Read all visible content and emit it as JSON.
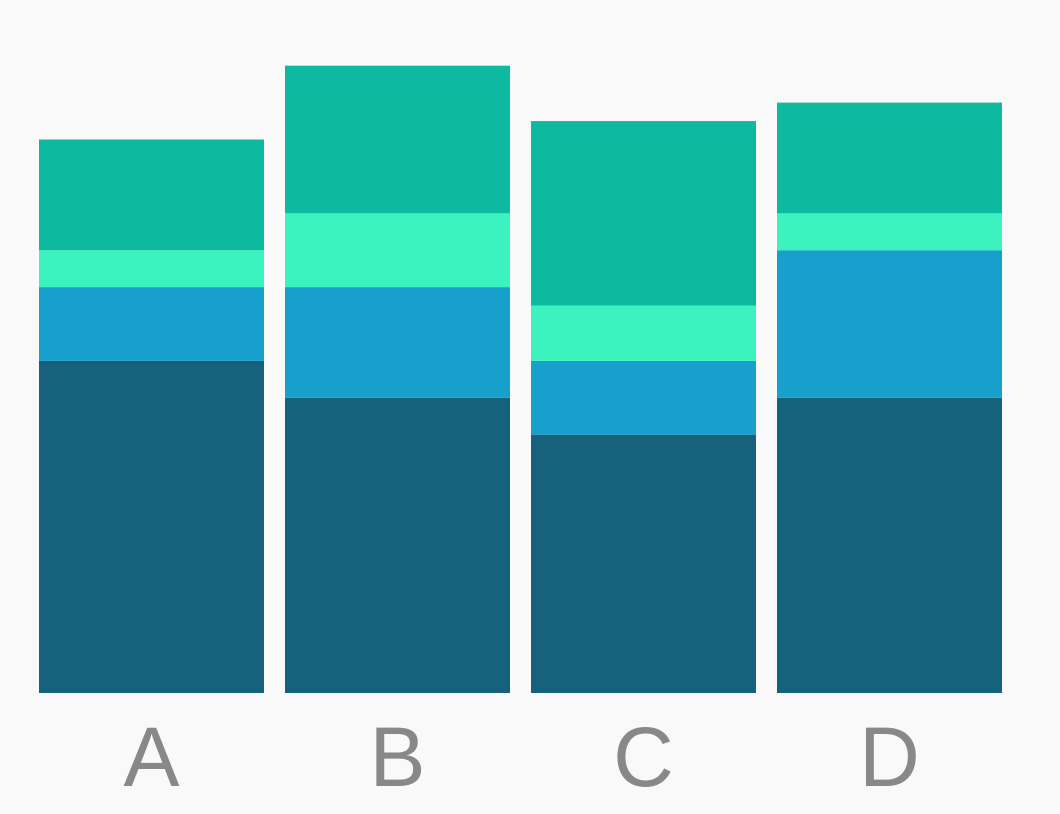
{
  "chart_data": {
    "type": "bar",
    "stacked": true,
    "categories": [
      "A",
      "B",
      "C",
      "D"
    ],
    "series": [
      {
        "values": [
          9,
          8,
          7,
          8
        ],
        "color": "#16617b"
      },
      {
        "values": [
          2,
          3,
          2,
          4
        ],
        "color": "#18a0cc"
      },
      {
        "values": [
          1,
          2,
          1.5,
          1
        ],
        "color": "#3cf3c0"
      },
      {
        "values": [
          3,
          4,
          5,
          3
        ],
        "color": "#0dbaa0"
      }
    ],
    "ylim": [
      0,
      18
    ],
    "grid": false,
    "legend": "none",
    "background": "#f9f9f9",
    "label_color": "#888888"
  }
}
